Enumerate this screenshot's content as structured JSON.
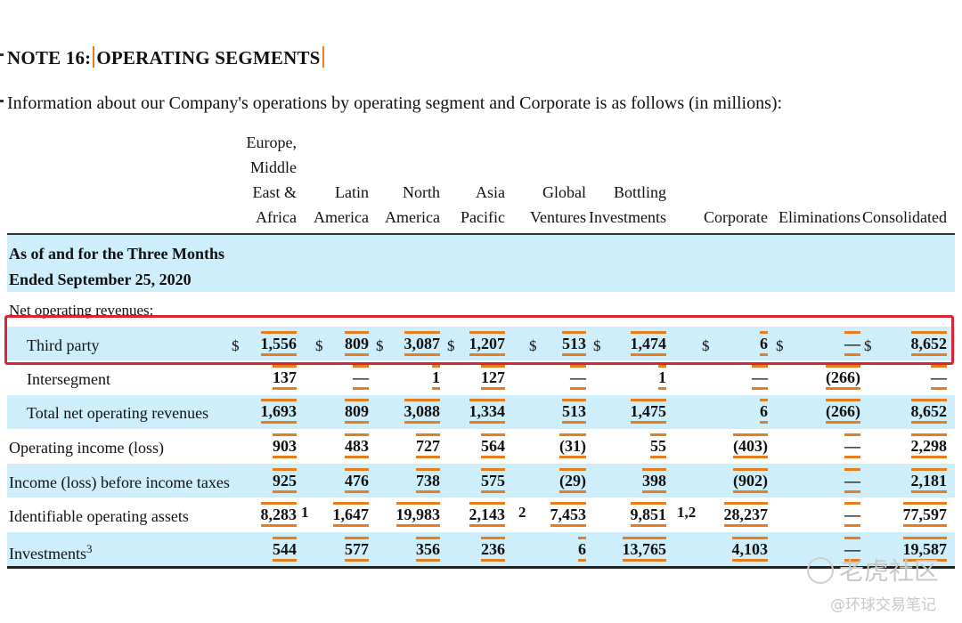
{
  "title_prefix": "NOTE 16:",
  "title_main": "OPERATING SEGMENTS",
  "intro": "Information about our Company's operations by operating segment and Corporate is as follows (in millions):",
  "columns": [
    {
      "key": "emea",
      "lines": [
        "Europe,",
        "Middle",
        "East &",
        "Africa"
      ]
    },
    {
      "key": "latin",
      "lines": [
        "Latin",
        "America"
      ]
    },
    {
      "key": "north",
      "lines": [
        "North",
        "America"
      ]
    },
    {
      "key": "asia",
      "lines": [
        "Asia",
        "Pacific"
      ]
    },
    {
      "key": "global",
      "lines": [
        "Global",
        "Ventures"
      ]
    },
    {
      "key": "bottling",
      "lines": [
        "Bottling",
        "Investments"
      ]
    },
    {
      "key": "corporate",
      "lines": [
        "Corporate"
      ]
    },
    {
      "key": "elim",
      "lines": [
        "Eliminations"
      ]
    },
    {
      "key": "consolidated",
      "lines": [
        "Consolidated"
      ]
    }
  ],
  "period_label": [
    "As of and for the Three Months",
    "Ended September 25, 2020"
  ],
  "net_operating_revenues_label": "Net operating revenues:",
  "dollar_sign": "$",
  "rows": [
    {
      "key": "third",
      "label": "Third party",
      "dollars": true,
      "values": [
        "1,556",
        "809",
        "3,087",
        "1,207",
        "513",
        "1,474",
        "6",
        "—",
        "8,652"
      ]
    },
    {
      "key": "inter",
      "label": "Intersegment",
      "values": [
        "137",
        "—",
        "1",
        "127",
        "—",
        "1",
        "—",
        "(266)",
        "—"
      ]
    },
    {
      "key": "total",
      "label": "Total net operating revenues",
      "values": [
        "1,693",
        "809",
        "3,088",
        "1,334",
        "513",
        "1,475",
        "6",
        "(266)",
        "8,652"
      ]
    },
    {
      "key": "opinc",
      "label": "Operating income (loss)",
      "values": [
        "903",
        "483",
        "727",
        "564",
        "(31)",
        "55",
        "(403)",
        "—",
        "2,298"
      ]
    },
    {
      "key": "ibt",
      "label": "Income (loss) before income taxes",
      "values": [
        "925",
        "476",
        "738",
        "575",
        "(29)",
        "398",
        "(902)",
        "—",
        "2,181"
      ]
    },
    {
      "key": "assets",
      "label": "Identifiable operating assets",
      "values": [
        "8,283",
        "1,647",
        "19,983",
        "2,143",
        "7,453",
        "9,851",
        "28,237",
        "—",
        "77,597"
      ],
      "footnotes": {
        "emea": "1",
        "asia": "2",
        "bottling": "1,2"
      }
    },
    {
      "key": "invest",
      "label": "Investments",
      "label_sup": "3",
      "values": [
        "544",
        "577",
        "356",
        "236",
        "6",
        "13,765",
        "4,103",
        "—",
        "19,587"
      ]
    }
  ],
  "watermark_top": "老虎社区",
  "watermark_bottom": "@环球交易笔记"
}
